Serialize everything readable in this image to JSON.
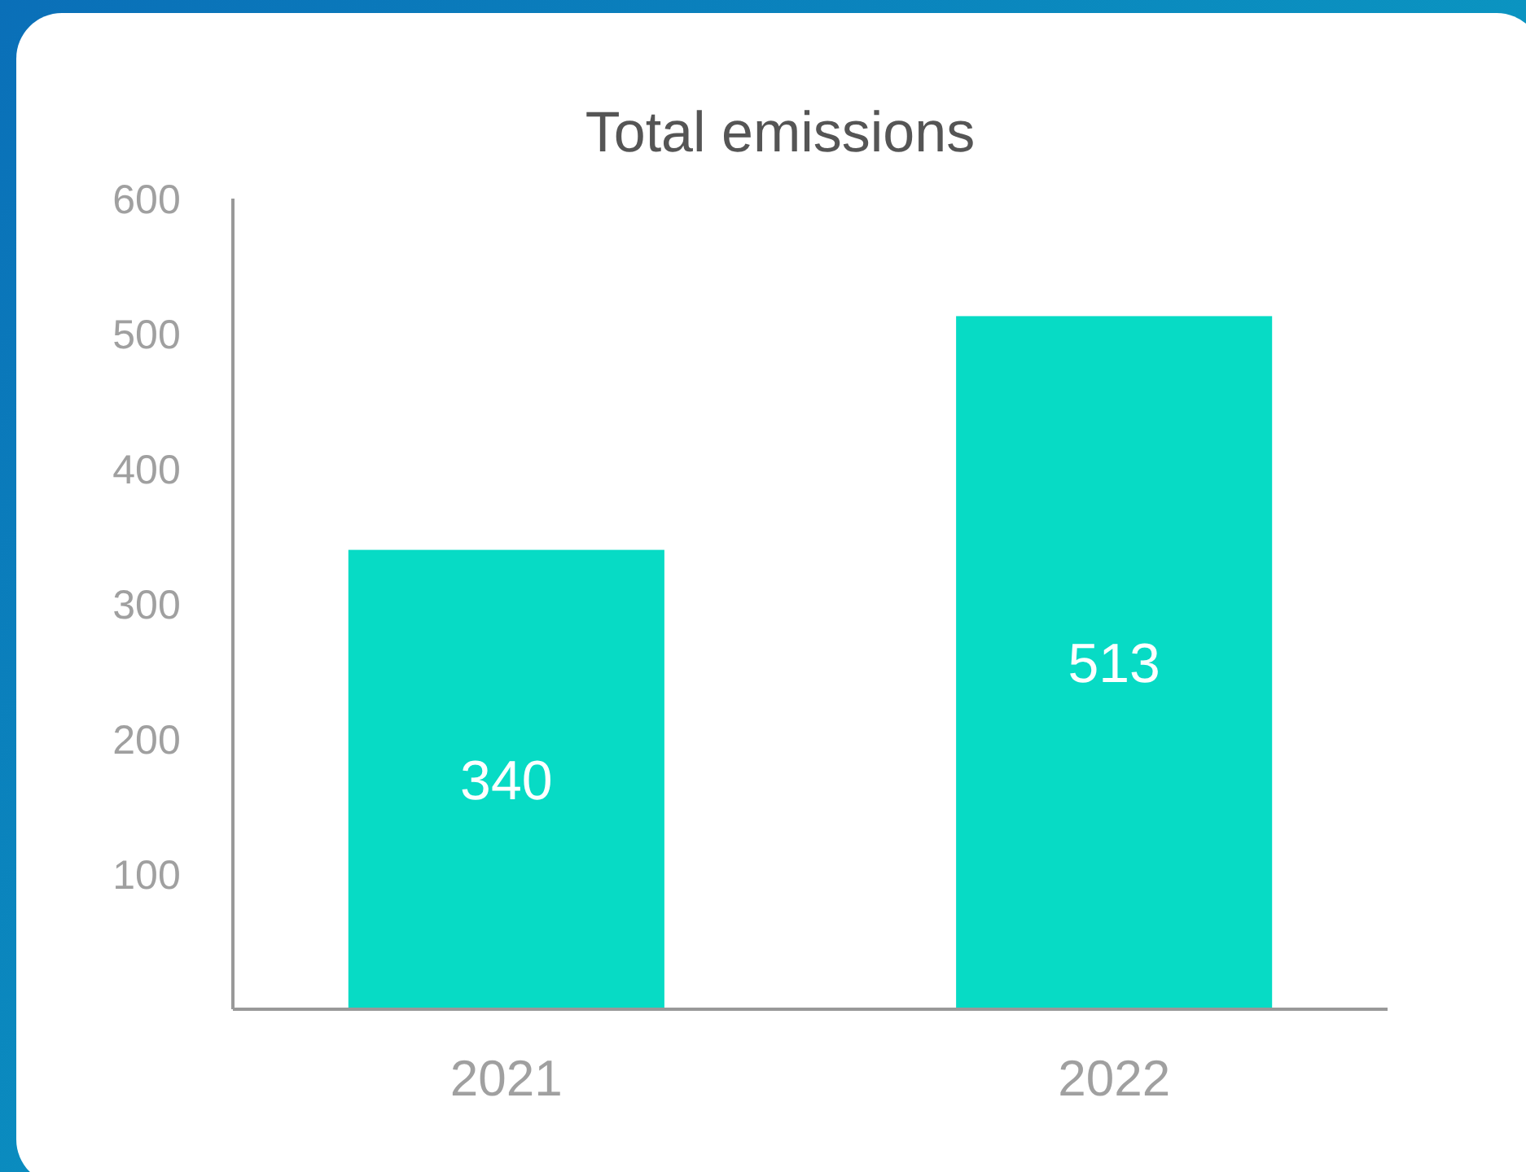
{
  "chart_data": {
    "type": "bar",
    "title": "Total emissions",
    "categories": [
      "2021",
      "2022"
    ],
    "values": [
      340,
      513
    ],
    "color": "#07dbc5",
    "ylim": [
      0,
      600
    ],
    "yticks": [
      100,
      200,
      300,
      400,
      500,
      600
    ],
    "data_labels": true
  }
}
